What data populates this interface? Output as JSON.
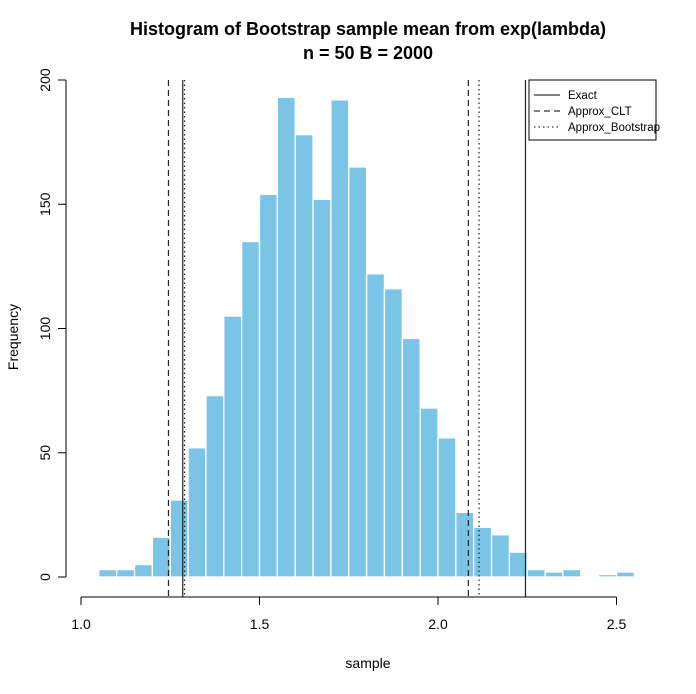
{
  "chart_data": {
    "type": "bar",
    "title_line1": "Histogram of Bootstrap sample mean from exp(lambda)",
    "title_line2": "n = 50 B = 2000",
    "xlabel": "sample",
    "ylabel": "Frequency",
    "xlim": [
      1.0,
      2.55
    ],
    "ylim": [
      0,
      200
    ],
    "x_ticks": [
      1.0,
      1.5,
      2.0,
      2.5
    ],
    "x_tick_labels": [
      "1.0",
      "1.5",
      "2.0",
      "2.5"
    ],
    "y_ticks": [
      0,
      50,
      100,
      150,
      200
    ],
    "y_tick_labels": [
      "0",
      "50",
      "100",
      "150",
      "200"
    ],
    "bin_width": 0.05,
    "bins": [
      {
        "x0": 1.05,
        "count": 3
      },
      {
        "x0": 1.1,
        "count": 3
      },
      {
        "x0": 1.15,
        "count": 5
      },
      {
        "x0": 1.2,
        "count": 16
      },
      {
        "x0": 1.25,
        "count": 31
      },
      {
        "x0": 1.3,
        "count": 52
      },
      {
        "x0": 1.35,
        "count": 73
      },
      {
        "x0": 1.4,
        "count": 105
      },
      {
        "x0": 1.45,
        "count": 135
      },
      {
        "x0": 1.5,
        "count": 154
      },
      {
        "x0": 1.55,
        "count": 193
      },
      {
        "x0": 1.6,
        "count": 178
      },
      {
        "x0": 1.65,
        "count": 152
      },
      {
        "x0": 1.7,
        "count": 192
      },
      {
        "x0": 1.75,
        "count": 165
      },
      {
        "x0": 1.8,
        "count": 122
      },
      {
        "x0": 1.85,
        "count": 116
      },
      {
        "x0": 1.9,
        "count": 96
      },
      {
        "x0": 1.95,
        "count": 68
      },
      {
        "x0": 2.0,
        "count": 56
      },
      {
        "x0": 2.05,
        "count": 26
      },
      {
        "x0": 2.1,
        "count": 20
      },
      {
        "x0": 2.15,
        "count": 17
      },
      {
        "x0": 2.2,
        "count": 10
      },
      {
        "x0": 2.25,
        "count": 3
      },
      {
        "x0": 2.3,
        "count": 2
      },
      {
        "x0": 2.35,
        "count": 3
      },
      {
        "x0": 2.4,
        "count": 0
      },
      {
        "x0": 2.45,
        "count": 1
      },
      {
        "x0": 2.5,
        "count": 2
      }
    ],
    "bar_color": "#7AC5E6",
    "bar_border": "#ffffff",
    "vlines": [
      {
        "series": "Approx_CLT",
        "style": "dashed",
        "x": [
          1.245,
          2.085
        ]
      },
      {
        "series": "Exact",
        "style": "solid",
        "x": [
          1.285,
          2.245
        ]
      },
      {
        "series": "Approx_Bootstrap",
        "style": "dotted",
        "x": [
          1.29,
          2.115
        ]
      }
    ],
    "legend": {
      "placement": "top-right",
      "entries": [
        {
          "label": "Exact",
          "style": "solid"
        },
        {
          "label": "Approx_CLT",
          "style": "dashed"
        },
        {
          "label": "Approx_Bootstrap",
          "style": "dotted"
        }
      ]
    }
  }
}
